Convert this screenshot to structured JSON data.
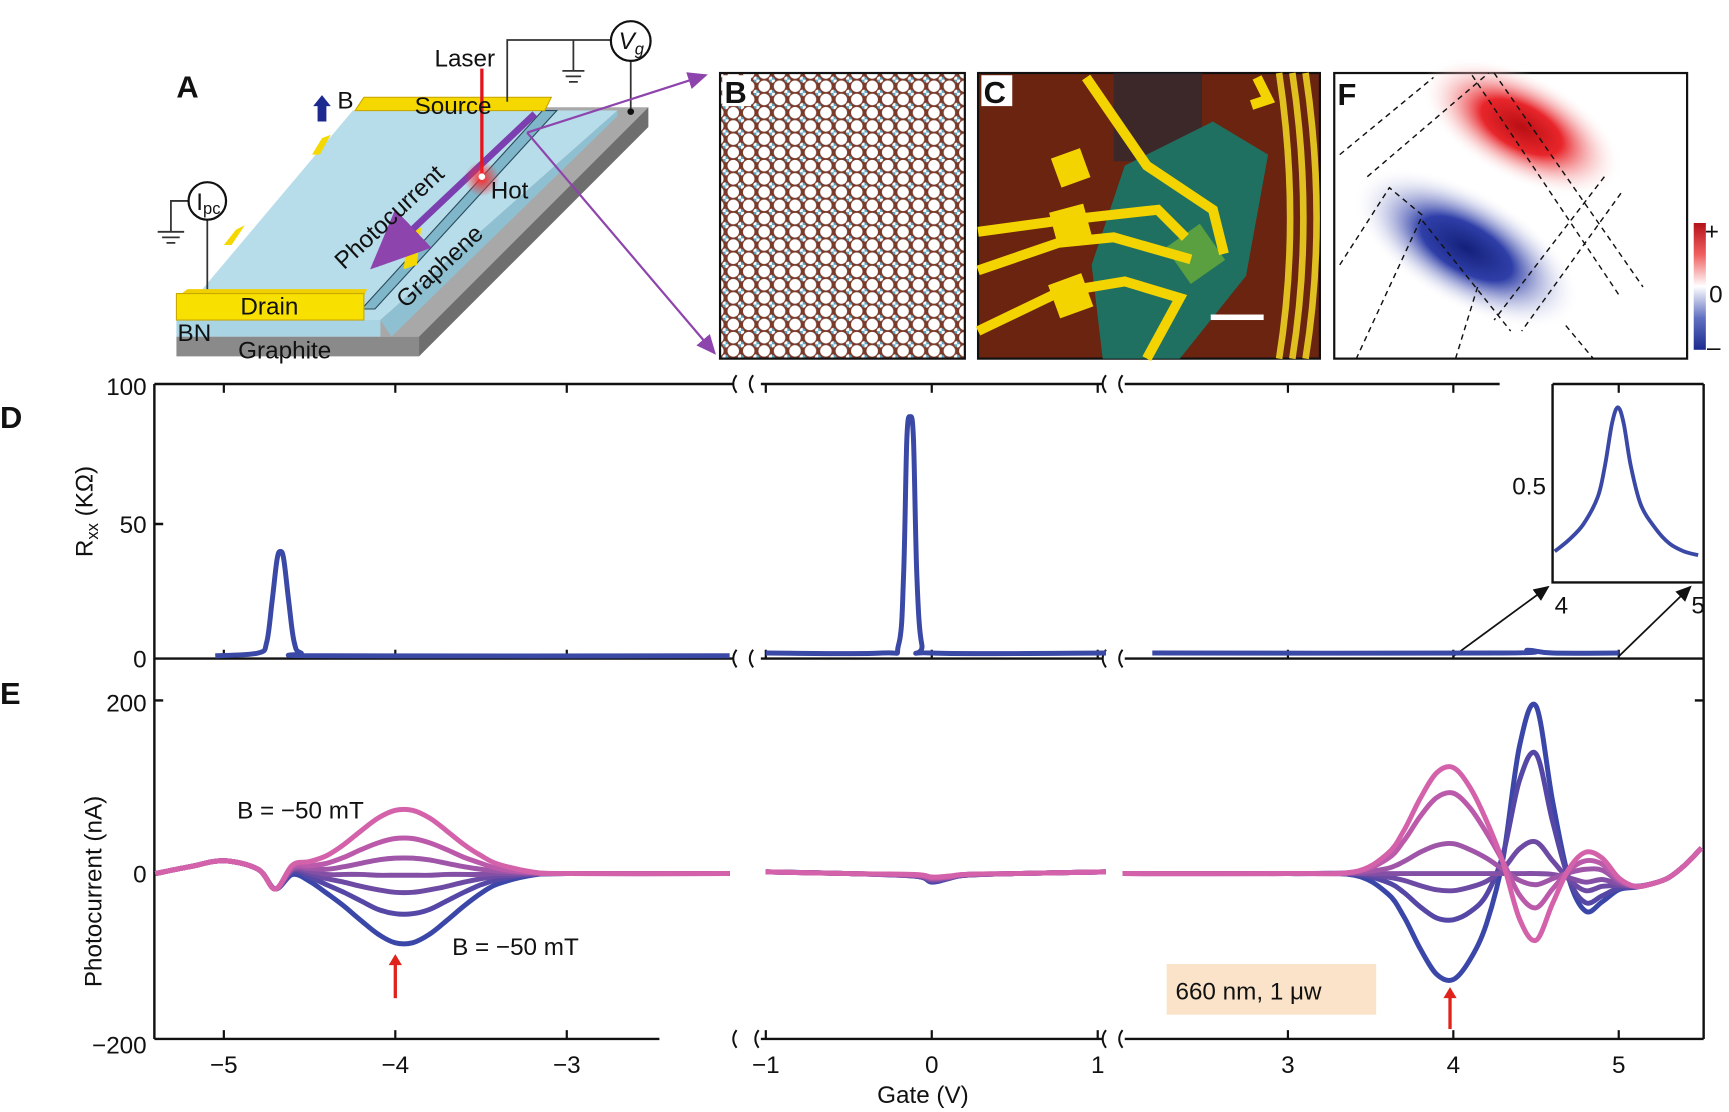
{
  "panels": {
    "A": "A",
    "B": "B",
    "C": "C",
    "D": "D",
    "E": "E",
    "F": "F"
  },
  "schematic": {
    "laser": "Laser",
    "vg_main": "V",
    "vg_sub": "g",
    "b_field": "B",
    "source": "Source",
    "photocurrent": "Photocurrent",
    "hot": "Hot",
    "graphene": "Graphene",
    "drain": "Drain",
    "bn": "BN",
    "graphite": "Graphite",
    "ipc_main": "I",
    "ipc_sub": "pc"
  },
  "colorbar": {
    "plus": "+",
    "zero": "0",
    "minus": "–",
    "pos_color": "#d4161c",
    "neg_color": "#1c2a8f"
  },
  "chart_data": [
    {
      "type": "line",
      "panel": "D",
      "ylabel_main": "R",
      "ylabel_sub": "xx",
      "ylabel_unit": " (KΩ)",
      "ylim": [
        0,
        100
      ],
      "yticks": [
        "100",
        "50",
        "0"
      ],
      "color": "#3a48a6",
      "segments": [
        {
          "x": [
            -5.05,
            -4.8,
            -4.75,
            -4.72,
            -4.69,
            -4.67,
            -4.65,
            -4.62,
            -4.59,
            -4.55,
            -4.4,
            -2.05
          ],
          "y": [
            1,
            2,
            6,
            20,
            36,
            39,
            36,
            20,
            6,
            2,
            1,
            1
          ]
        },
        {
          "x": [
            -1,
            -0.3,
            -0.2,
            -0.17,
            -0.15,
            -0.13,
            -0.11,
            -0.09,
            -0.06,
            0,
            1.05
          ],
          "y": [
            2,
            2,
            5,
            30,
            80,
            88,
            80,
            30,
            5,
            2,
            2
          ]
        },
        {
          "x": [
            2.18,
            4.3,
            4.45,
            4.6,
            5.0
          ],
          "y": [
            2,
            2,
            3,
            2,
            2
          ]
        }
      ],
      "inset": {
        "xlim": [
          4,
          5
        ],
        "ylim": [
          0.25,
          0.76
        ],
        "ytick": "0.5",
        "xticks": [
          "4",
          "5"
        ],
        "x": [
          4.0,
          4.1,
          4.2,
          4.3,
          4.35,
          4.4,
          4.44,
          4.48,
          4.53,
          4.6,
          4.7,
          4.8,
          4.9,
          5.0
        ],
        "y": [
          0.33,
          0.36,
          0.4,
          0.47,
          0.55,
          0.66,
          0.7,
          0.66,
          0.55,
          0.45,
          0.39,
          0.35,
          0.33,
          0.32
        ]
      }
    },
    {
      "type": "line",
      "panel": "E",
      "ylabel": "Photocurrent (nA)",
      "ylim": [
        -200,
        200
      ],
      "yticks": [
        "200",
        "0",
        "−200"
      ],
      "xlabel": "Gate (V)",
      "xticks": [
        {
          "v": -5,
          "t": "−5"
        },
        {
          "v": -4,
          "t": "−4"
        },
        {
          "v": -3,
          "t": "−3"
        },
        {
          "v": -1,
          "t": "−1"
        },
        {
          "v": 0,
          "t": "0"
        },
        {
          "v": 1,
          "t": "1"
        },
        {
          "v": 3,
          "t": "3"
        },
        {
          "v": 4,
          "t": "4"
        },
        {
          "v": 5,
          "t": "5"
        }
      ],
      "annotations": {
        "top": "B = −50 mT",
        "bottom": "B = −50 mT",
        "laser": "660 nm, 1 μw"
      },
      "arrow_color": "#e0231a",
      "series_colors": [
        "#3b47a8",
        "#5547a6",
        "#6d4aa4",
        "#8450a6",
        "#9f55a8",
        "#bb5aaa",
        "#d462ab"
      ],
      "segments": [
        {
          "x": [
            -5.4,
            -5.2,
            -5.0,
            -4.8,
            -4.7,
            -4.6,
            -4.5,
            -4.4,
            -4.3,
            -4.2,
            -4.1,
            -4.0,
            -3.9,
            -3.8,
            -3.7,
            -3.6,
            -3.5,
            -3.4,
            -3.2,
            -3.0,
            -2.05
          ],
          "series": [
            [
              0,
              8,
              15,
              5,
              -18,
              -1,
              -9,
              -23,
              -38,
              -55,
              -71,
              -81,
              -81,
              -71,
              -55,
              -38,
              -23,
              -12,
              -2,
              0,
              0
            ],
            [
              0,
              8,
              15,
              5,
              -18,
              2,
              -4,
              -13,
              -22,
              -32,
              -42,
              -47,
              -47,
              -42,
              -32,
              -22,
              -13,
              -7,
              -1,
              0,
              0
            ],
            [
              0,
              8,
              15,
              5,
              -18,
              4,
              0,
              -6,
              -10,
              -15,
              -19,
              -22,
              -22,
              -19,
              -15,
              -10,
              -6,
              -3,
              -1,
              0,
              0
            ],
            [
              0,
              8,
              15,
              5,
              -18,
              5,
              3,
              -1,
              -1,
              -1,
              -2,
              -2,
              -2,
              -2,
              -1,
              -1,
              -1,
              0,
              0,
              0,
              0
            ],
            [
              0,
              8,
              15,
              5,
              -18,
              6,
              6,
              5,
              8,
              12,
              16,
              18,
              18,
              16,
              12,
              8,
              5,
              3,
              1,
              0,
              0
            ],
            [
              0,
              8,
              15,
              5,
              -18,
              8,
              9,
              12,
              19,
              28,
              36,
              41,
              41,
              36,
              28,
              19,
              12,
              6,
              1,
              0,
              0
            ],
            [
              0,
              8,
              15,
              5,
              -18,
              10,
              14,
              21,
              34,
              50,
              65,
              74,
              74,
              65,
              50,
              34,
              21,
              11,
              2,
              0,
              0
            ]
          ]
        },
        {
          "x": [
            -1,
            -0.5,
            -0.1,
            0,
            0.1,
            0.2,
            0.5,
            1.05
          ],
          "series": [
            [
              2,
              0,
              -3,
              -10,
              -6,
              -2,
              0,
              2
            ],
            [
              2,
              0,
              -3,
              -9,
              -6,
              -2,
              0,
              2
            ],
            [
              2,
              0,
              -3,
              -8,
              -5,
              -2,
              0,
              2
            ],
            [
              2,
              0,
              -2,
              -7,
              -5,
              -2,
              0,
              2
            ],
            [
              2,
              0,
              -2,
              -6,
              -4,
              -1,
              0,
              2
            ],
            [
              2,
              0,
              -2,
              -5,
              -4,
              -1,
              0,
              2
            ],
            [
              2,
              0,
              -1,
              -4,
              -3,
              -1,
              0,
              2
            ]
          ]
        },
        {
          "x": [
            2.0,
            3.0,
            3.4,
            3.6,
            3.7,
            3.8,
            3.9,
            4.0,
            4.1,
            4.2,
            4.3,
            4.4,
            4.5,
            4.6,
            4.7,
            4.8,
            4.9,
            5.0,
            5.1,
            5.2,
            5.3,
            5.4,
            5.5
          ],
          "series": [
            [
              0,
              0,
              -2,
              -23,
              -50,
              -88,
              -118,
              -124,
              -101,
              -59,
              17,
              149,
              196,
              85,
              -7,
              -44,
              -33,
              -19,
              -16,
              -12,
              -5,
              10,
              30
            ],
            [
              0,
              0,
              -1,
              -10,
              -22,
              -39,
              -52,
              -54,
              -45,
              -25,
              22,
              109,
              140,
              61,
              -7,
              -34,
              -26,
              -17,
              -16,
              -12,
              -5,
              10,
              30
            ],
            [
              0,
              0,
              0,
              -4,
              -8,
              -14,
              -19,
              -20,
              -16,
              -9,
              5,
              29,
              37,
              15,
              -7,
              -20,
              -15,
              -14,
              -15,
              -12,
              -5,
              10,
              30
            ],
            [
              0,
              0,
              0,
              0,
              0,
              0,
              0,
              0,
              0,
              0,
              0,
              0,
              0,
              -1,
              -5,
              -10,
              -7,
              -12,
              -15,
              -12,
              -5,
              10,
              30
            ],
            [
              0,
              0,
              1,
              6,
              14,
              25,
              33,
              35,
              28,
              18,
              5,
              -8,
              -13,
              -6,
              1,
              5,
              4,
              -9,
              -15,
              -12,
              -5,
              10,
              30
            ],
            [
              0,
              0,
              2,
              17,
              38,
              67,
              89,
              94,
              77,
              48,
              14,
              -25,
              -40,
              -18,
              4,
              15,
              11,
              -7,
              -15,
              -12,
              -5,
              10,
              30
            ],
            [
              0,
              0,
              2,
              23,
              50,
              88,
              118,
              124,
              101,
              62,
              13,
              -53,
              -78,
              -35,
              6,
              25,
              18,
              -5,
              -15,
              -12,
              -5,
              10,
              30
            ]
          ]
        }
      ]
    }
  ]
}
